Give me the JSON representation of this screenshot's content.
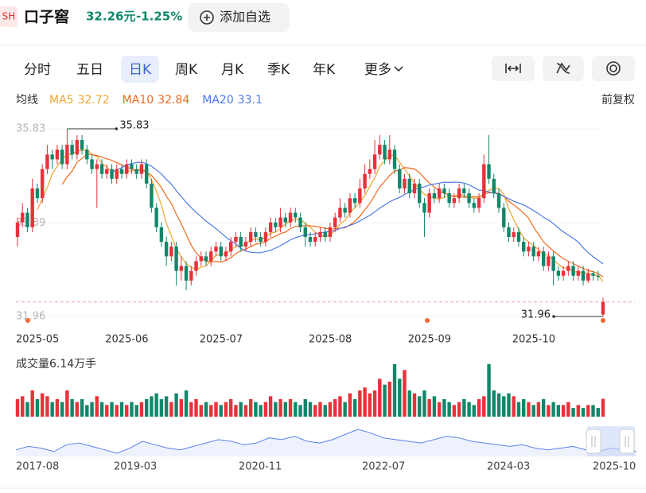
{
  "header": {
    "exchange": "SH",
    "name": "口子窖",
    "price": "32.26元",
    "change": "-1.25%",
    "watch": "添加自选"
  },
  "tabs": [
    "分时",
    "五日",
    "日K",
    "周K",
    "月K",
    "季K",
    "年K",
    "更多"
  ],
  "selected_tab": "日K",
  "legend": {
    "title": "均线",
    "ma": [
      {
        "name": "MA5",
        "value": 32.72,
        "color": "#f0a52a",
        "period": 5
      },
      {
        "name": "MA10",
        "value": 32.84,
        "color": "#f06a1f",
        "period": 10
      },
      {
        "name": "MA20",
        "value": 33.1,
        "color": "#4d7ae6",
        "period": 20
      }
    ],
    "adjust": "前复权"
  },
  "chart_data": {
    "type": "candlestick",
    "up_color": "#e8313a",
    "down_color": "#12876a",
    "ylim": [
      31.96,
      35.83
    ],
    "yticks": [
      35.83,
      33.89,
      31.96
    ],
    "max_label": 35.83,
    "min_label": 31.96,
    "categories": [
      "2025-05",
      null,
      null,
      null,
      null,
      null,
      null,
      null,
      null,
      null,
      null,
      null,
      null,
      null,
      null,
      null,
      null,
      null,
      "2025-06",
      null,
      null,
      null,
      null,
      null,
      null,
      null,
      null,
      null,
      null,
      null,
      null,
      null,
      null,
      null,
      null,
      null,
      null,
      "2025-07",
      null,
      null,
      null,
      null,
      null,
      null,
      null,
      null,
      null,
      null,
      null,
      null,
      null,
      null,
      null,
      null,
      null,
      null,
      null,
      null,
      null,
      "2025-08",
      null,
      null,
      null,
      null,
      null,
      null,
      null,
      null,
      null,
      null,
      null,
      null,
      null,
      null,
      null,
      null,
      null,
      null,
      null,
      "2025-09",
      null,
      null,
      null,
      null,
      null,
      null,
      null,
      null,
      null,
      null,
      null,
      null,
      null,
      null,
      null,
      null,
      null,
      null,
      null,
      null,
      "2025-10",
      null,
      null,
      null,
      null,
      null,
      null,
      null,
      null,
      null,
      null,
      null,
      null,
      null,
      null,
      null,
      null,
      null,
      null
    ],
    "open": [
      33.6,
      33.9,
      34.1,
      33.8,
      34.6,
      34.4,
      35.0,
      35.3,
      35.2,
      35.4,
      35.1,
      35.5,
      35.3,
      35.6,
      35.4,
      35.2,
      35.0,
      35.1,
      34.9,
      35.0,
      34.8,
      35.0,
      34.9,
      35.1,
      35.0,
      34.9,
      35.1,
      34.7,
      34.2,
      33.8,
      33.5,
      33.2,
      33.4,
      32.9,
      33.0,
      32.7,
      32.9,
      33.1,
      33.2,
      33.1,
      33.3,
      33.4,
      33.2,
      33.3,
      33.5,
      33.6,
      33.4,
      33.5,
      33.7,
      33.6,
      33.5,
      33.7,
      33.9,
      33.8,
      34.0,
      33.9,
      34.1,
      34.0,
      33.8,
      33.6,
      33.5,
      33.6,
      33.7,
      33.6,
      33.8,
      34.0,
      34.2,
      34.1,
      34.4,
      34.3,
      34.6,
      34.9,
      35.0,
      35.3,
      35.5,
      35.2,
      35.4,
      35.0,
      34.6,
      34.8,
      34.5,
      34.7,
      34.3,
      34.1,
      34.5,
      34.4,
      34.6,
      34.5,
      34.3,
      34.4,
      34.6,
      34.5,
      34.3,
      34.2,
      34.4,
      35.1,
      34.8,
      34.5,
      34.2,
      33.8,
      33.6,
      33.7,
      33.5,
      33.3,
      33.4,
      33.2,
      33.3,
      33.0,
      33.2,
      32.9,
      32.8,
      32.9,
      33.0,
      32.8,
      32.9,
      32.7,
      32.85,
      32.8,
      32.0
    ],
    "high": [
      34.0,
      34.3,
      34.2,
      34.8,
      34.7,
      35.1,
      35.5,
      35.4,
      35.5,
      35.5,
      35.83,
      35.6,
      35.7,
      35.7,
      35.5,
      35.3,
      35.2,
      35.2,
      35.1,
      35.1,
      35.1,
      35.1,
      35.2,
      35.2,
      35.1,
      35.2,
      35.2,
      34.8,
      34.3,
      33.9,
      33.6,
      33.5,
      33.5,
      33.2,
      33.1,
      33.0,
      33.2,
      33.3,
      33.3,
      33.4,
      33.5,
      33.5,
      33.4,
      33.6,
      33.7,
      33.7,
      33.6,
      33.8,
      33.8,
      33.7,
      33.8,
      34.0,
      34.0,
      34.2,
      34.1,
      34.2,
      34.2,
      34.1,
      33.9,
      33.7,
      33.7,
      33.8,
      33.8,
      33.9,
      34.1,
      34.4,
      34.3,
      34.5,
      34.5,
      34.8,
      35.1,
      35.2,
      35.6,
      35.7,
      35.6,
      35.7,
      35.5,
      35.1,
      34.9,
      34.9,
      34.8,
      34.8,
      34.4,
      34.6,
      34.6,
      34.7,
      34.7,
      34.6,
      34.5,
      34.7,
      34.7,
      34.6,
      34.4,
      34.5,
      35.3,
      35.7,
      34.9,
      34.6,
      34.3,
      33.9,
      33.8,
      33.8,
      33.6,
      33.5,
      33.5,
      33.4,
      33.4,
      33.3,
      33.3,
      33.0,
      33.0,
      33.1,
      33.1,
      33.0,
      33.0,
      32.95,
      32.9,
      32.9,
      32.35
    ],
    "low": [
      33.4,
      33.8,
      33.7,
      33.7,
      34.3,
      34.3,
      34.9,
      35.0,
      35.1,
      35.0,
      35.0,
      35.2,
      35.2,
      35.3,
      35.1,
      34.9,
      34.2,
      34.8,
      34.8,
      34.7,
      34.7,
      34.8,
      34.8,
      34.9,
      34.8,
      34.8,
      34.6,
      34.1,
      33.7,
      33.4,
      33.0,
      33.1,
      32.6,
      32.7,
      32.5,
      32.6,
      32.8,
      33.0,
      33.0,
      33.0,
      33.2,
      33.1,
      33.1,
      33.2,
      33.4,
      33.3,
      33.3,
      33.4,
      33.5,
      33.4,
      33.4,
      33.6,
      33.7,
      33.7,
      33.8,
      33.8,
      33.9,
      33.7,
      33.4,
      33.4,
      33.4,
      33.5,
      33.5,
      33.5,
      33.7,
      33.9,
      34.0,
      34.0,
      34.2,
      34.2,
      34.5,
      34.8,
      34.9,
      35.2,
      35.1,
      35.1,
      34.9,
      34.5,
      34.5,
      34.4,
      34.4,
      34.2,
      33.6,
      34.0,
      34.3,
      34.3,
      34.4,
      34.2,
      34.2,
      34.3,
      34.4,
      34.2,
      34.1,
      34.1,
      34.3,
      34.7,
      34.4,
      34.1,
      33.7,
      33.5,
      33.5,
      33.4,
      33.2,
      33.2,
      33.1,
      33.1,
      32.9,
      32.9,
      32.6,
      32.7,
      32.7,
      32.8,
      32.7,
      32.7,
      32.6,
      32.65,
      32.7,
      32.7,
      31.96
    ],
    "close": [
      33.9,
      34.1,
      33.8,
      34.6,
      34.4,
      35.0,
      35.3,
      35.2,
      35.4,
      35.1,
      35.5,
      35.3,
      35.6,
      35.4,
      35.2,
      35.0,
      35.1,
      34.9,
      35.0,
      34.8,
      35.0,
      34.9,
      35.1,
      35.0,
      34.9,
      35.1,
      34.7,
      34.2,
      33.8,
      33.5,
      33.2,
      33.4,
      32.9,
      33.0,
      32.7,
      32.9,
      33.1,
      33.2,
      33.1,
      33.3,
      33.4,
      33.2,
      33.3,
      33.5,
      33.6,
      33.4,
      33.5,
      33.7,
      33.6,
      33.5,
      33.7,
      33.9,
      33.8,
      34.0,
      33.9,
      34.1,
      34.0,
      33.8,
      33.6,
      33.5,
      33.6,
      33.7,
      33.6,
      33.8,
      34.0,
      34.2,
      34.1,
      34.4,
      34.3,
      34.6,
      34.9,
      35.0,
      35.3,
      35.5,
      35.2,
      35.4,
      35.0,
      34.6,
      34.8,
      34.5,
      34.7,
      34.3,
      34.1,
      34.5,
      34.4,
      34.6,
      34.5,
      34.3,
      34.4,
      34.6,
      34.5,
      34.3,
      34.2,
      34.4,
      35.1,
      34.8,
      34.5,
      34.2,
      33.8,
      33.6,
      33.7,
      33.5,
      33.3,
      33.4,
      33.2,
      33.3,
      33.0,
      33.2,
      32.9,
      32.8,
      32.9,
      33.0,
      32.8,
      32.9,
      32.7,
      32.85,
      32.8,
      32.78,
      32.26
    ],
    "volume_label": "成交量6.14万手",
    "volume": [
      6,
      7,
      5,
      9,
      6,
      8,
      7,
      5,
      6,
      5,
      9,
      6,
      5,
      6,
      4,
      5,
      7,
      5,
      4,
      5,
      4,
      5,
      4,
      5,
      4,
      5,
      6,
      7,
      8,
      6,
      7,
      5,
      8,
      6,
      9,
      5,
      6,
      4,
      5,
      4,
      5,
      4,
      5,
      6,
      4,
      5,
      4,
      6,
      5,
      4,
      5,
      7,
      5,
      6,
      5,
      6,
      5,
      4,
      6,
      5,
      4,
      5,
      4,
      5,
      6,
      7,
      5,
      8,
      6,
      9,
      10,
      8,
      9,
      13,
      11,
      12,
      18,
      13,
      16,
      9,
      8,
      7,
      9,
      6,
      7,
      5,
      6,
      5,
      4,
      5,
      6,
      5,
      4,
      6,
      7,
      18,
      9,
      8,
      7,
      8,
      7,
      5,
      6,
      5,
      4,
      5,
      6,
      4,
      5,
      4,
      4,
      5,
      3,
      4,
      3,
      4,
      4,
      3,
      6.14
    ]
  },
  "navigator": {
    "labels": [
      "2017-08",
      "2019-03",
      "2020-11",
      "2022-07",
      "2024-03",
      "2025-10"
    ],
    "values": [
      30,
      32,
      31,
      29,
      33,
      34,
      32,
      30,
      28,
      31,
      35,
      33,
      31,
      30,
      32,
      34,
      36,
      35,
      33,
      34,
      37,
      36,
      38,
      35,
      34,
      36,
      39,
      42,
      40,
      37,
      36,
      35,
      34,
      36,
      38,
      37,
      35,
      34,
      33,
      32,
      33,
      31,
      30,
      31,
      32,
      30,
      29,
      31,
      30,
      29
    ]
  }
}
